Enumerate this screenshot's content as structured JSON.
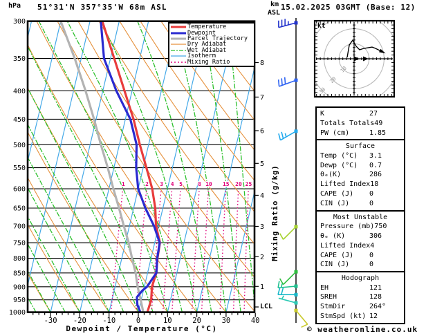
{
  "header": {
    "pressure_unit": "hPa",
    "station": "51°31'N 357°35'W 68m ASL",
    "altitude_unit_line1": "km",
    "altitude_unit_line2": "ASL",
    "datetime": "15.02.2025 03GMT (Base: 12)"
  },
  "legend": {
    "items": [
      {
        "label": "Temperature",
        "color": "#e83c3c",
        "width": 3,
        "dash": null
      },
      {
        "label": "Dewpoint",
        "color": "#2a2ad0",
        "width": 3,
        "dash": null
      },
      {
        "label": "Parcel Trajectory",
        "color": "#b3b3b3",
        "width": 3,
        "dash": null
      },
      {
        "label": "Dry Adiabat",
        "color": "#e6913c",
        "width": 1.2,
        "dash": null
      },
      {
        "label": "Wet Adiabat",
        "color": "#2dc02d",
        "width": 1.2,
        "dash": "6 2 2 2"
      },
      {
        "label": "Isotherm",
        "color": "#45a9e8",
        "width": 1.2,
        "dash": null
      },
      {
        "label": "Mixing Ratio",
        "color": "#e0007a",
        "width": 1.4,
        "dash": "2 3"
      }
    ]
  },
  "axes": {
    "pressure_ticks": [
      300,
      350,
      400,
      450,
      500,
      550,
      600,
      650,
      700,
      750,
      800,
      850,
      900,
      950,
      1000
    ],
    "temp_ticks": [
      -30,
      -20,
      -10,
      0,
      10,
      20,
      30,
      40
    ],
    "temp_axis_label": "Dewpoint / Temperature (°C)",
    "km_ticks": [
      8,
      7,
      6,
      5,
      4,
      3,
      2,
      1
    ],
    "lcl_label": "LCL",
    "mixing_ratio_axis_label": "Mixing Ratio (g/kg)",
    "mixing_ratio_values": [
      1,
      2,
      3,
      4,
      5,
      8,
      10,
      15,
      20,
      25
    ]
  },
  "chart_data": {
    "type": "skewt-log-p",
    "pressure_range_hpa": [
      300,
      1000
    ],
    "temp_range_bottom_c": [
      -40,
      40
    ],
    "temperature_profile_p_c": [
      [
        1000,
        3.1
      ],
      [
        950,
        3.4
      ],
      [
        900,
        2.6
      ],
      [
        850,
        3.0
      ],
      [
        800,
        2.2
      ],
      [
        750,
        1.8
      ],
      [
        700,
        -0.9
      ],
      [
        650,
        -2.6
      ],
      [
        600,
        -5.2
      ],
      [
        550,
        -8.9
      ],
      [
        500,
        -13.0
      ],
      [
        450,
        -17.2
      ],
      [
        400,
        -22.6
      ],
      [
        350,
        -28.7
      ],
      [
        300,
        -35.8
      ]
    ],
    "dewpoint_profile_p_c": [
      [
        1000,
        0.7
      ],
      [
        970,
        -0.9
      ],
      [
        940,
        -1.7
      ],
      [
        915,
        -0.4
      ],
      [
        900,
        0.9
      ],
      [
        850,
        3.0
      ],
      [
        800,
        2.1
      ],
      [
        750,
        1.7
      ],
      [
        700,
        -1.6
      ],
      [
        650,
        -6.0
      ],
      [
        600,
        -10.0
      ],
      [
        550,
        -12.4
      ],
      [
        500,
        -14.1
      ],
      [
        450,
        -18.3
      ],
      [
        400,
        -25.4
      ],
      [
        350,
        -32.2
      ],
      [
        300,
        -36.3
      ]
    ],
    "parcel_profile_p_c": [
      [
        1000,
        1.7
      ],
      [
        950,
        -0.2
      ],
      [
        900,
        -2.3
      ],
      [
        850,
        -4.1
      ],
      [
        800,
        -6.5
      ],
      [
        750,
        -8.9
      ],
      [
        700,
        -11.9
      ],
      [
        650,
        -15.0
      ],
      [
        600,
        -18.5
      ],
      [
        550,
        -22.1
      ],
      [
        500,
        -26.3
      ],
      [
        450,
        -30.7
      ],
      [
        400,
        -35.9
      ],
      [
        350,
        -42.2
      ],
      [
        300,
        -50.0
      ]
    ],
    "wind_barbs": [
      {
        "pressure": 302,
        "speed_kt": 35,
        "dir_deg": 255,
        "color": "#2233cc"
      },
      {
        "pressure": 383,
        "speed_kt": 30,
        "dir_deg": 250,
        "color": "#2d62f2"
      },
      {
        "pressure": 473,
        "speed_kt": 25,
        "dir_deg": 240,
        "color": "#22aaee"
      },
      {
        "pressure": 702,
        "speed_kt": 10,
        "dir_deg": 225,
        "color": "#a6d22e"
      },
      {
        "pressure": 846,
        "speed_kt": 10,
        "dir_deg": 225,
        "color": "#2ebf3e"
      },
      {
        "pressure": 898,
        "speed_kt": 15,
        "dir_deg": 265,
        "color": "#1fc08f"
      },
      {
        "pressure": 930,
        "speed_kt": 20,
        "dir_deg": 270,
        "color": "#17b8c9"
      },
      {
        "pressure": 962,
        "speed_kt": 5,
        "dir_deg": 285,
        "color": "#2cc9b4"
      },
      {
        "pressure": 993,
        "speed_kt": 10,
        "dir_deg": 140,
        "color": "#c9c92a"
      }
    ],
    "hodograph": {
      "unit_label": "kt",
      "rings_kt": [
        10,
        20,
        30
      ],
      "trace_uv_kt": [
        [
          -4.6,
          0.9
        ],
        [
          -3.2,
          9.2
        ],
        [
          -0.9,
          12.4
        ],
        [
          1.4,
          8.3
        ],
        [
          3.7,
          6.0
        ],
        [
          6.5,
          6.9
        ],
        [
          12.0,
          7.8
        ],
        [
          14.3,
          6.9
        ],
        [
          18.9,
          4.6
        ]
      ],
      "axis_markers_u_kt": [
        1.4,
        7.4
      ]
    }
  },
  "panels": {
    "boxes": [
      {
        "title": null,
        "rows": [
          [
            "K",
            "27"
          ],
          [
            "Totals Totals",
            "49"
          ],
          [
            "PW (cm)",
            "1.85"
          ]
        ]
      },
      {
        "title": "Surface",
        "rows": [
          [
            "Temp (°C)",
            "3.1"
          ],
          [
            "Dewp (°C)",
            "0.7"
          ],
          [
            "θₑ(K)",
            "286"
          ],
          [
            "Lifted Index",
            "18"
          ],
          [
            "CAPE (J)",
            "0"
          ],
          [
            "CIN (J)",
            "0"
          ]
        ]
      },
      {
        "title": "Most Unstable",
        "rows": [
          [
            "Pressure (mb)",
            "750"
          ],
          [
            "θₑ (K)",
            "306"
          ],
          [
            "Lifted Index",
            "4"
          ],
          [
            "CAPE (J)",
            "0"
          ],
          [
            "CIN (J)",
            "0"
          ]
        ]
      },
      {
        "title": "Hodograph",
        "rows": [
          [
            "EH",
            "121"
          ],
          [
            "SREH",
            "128"
          ],
          [
            "StmDir",
            "264°"
          ],
          [
            "StmSpd (kt)",
            "12"
          ]
        ]
      }
    ]
  },
  "footer": {
    "credit": "© weatheronline.co.uk"
  }
}
